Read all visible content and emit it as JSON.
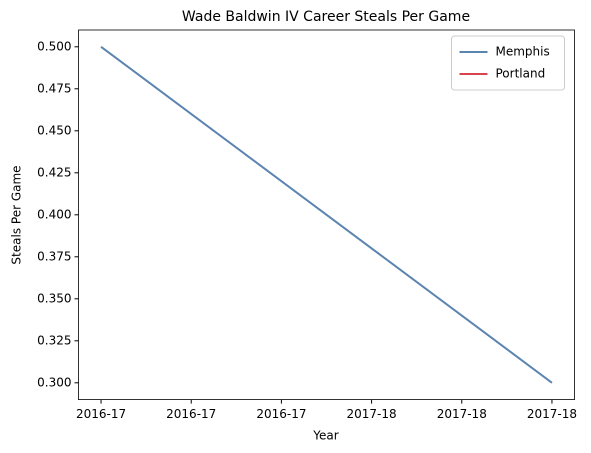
{
  "chart_data": {
    "type": "line",
    "title": "Wade Baldwin IV Career Steals Per Game",
    "xlabel": "Year",
    "ylabel": "Steals Per Game",
    "x": [
      0,
      1
    ],
    "series": [
      {
        "name": "Memphis",
        "color": "#5b84b1",
        "values": [
          0.5,
          0.3
        ]
      },
      {
        "name": "Portland",
        "color": "#d9434b",
        "values": [
          null,
          null
        ]
      }
    ],
    "xlim": [
      -0.05,
      1.05
    ],
    "xticks": [
      {
        "value": 0,
        "label": "2016-17"
      },
      {
        "value": 0.2,
        "label": "2016-17"
      },
      {
        "value": 0.4,
        "label": "2016-17"
      },
      {
        "value": 0.6,
        "label": "2017-18"
      },
      {
        "value": 0.8,
        "label": "2017-18"
      },
      {
        "value": 1,
        "label": "2017-18"
      }
    ],
    "ylim": [
      0.29,
      0.51
    ],
    "yticks": [
      {
        "value": 0.3,
        "label": "0.300"
      },
      {
        "value": 0.325,
        "label": "0.325"
      },
      {
        "value": 0.35,
        "label": "0.350"
      },
      {
        "value": 0.375,
        "label": "0.375"
      },
      {
        "value": 0.4,
        "label": "0.400"
      },
      {
        "value": 0.425,
        "label": "0.425"
      },
      {
        "value": 0.45,
        "label": "0.450"
      },
      {
        "value": 0.475,
        "label": "0.475"
      },
      {
        "value": 0.5,
        "label": "0.500"
      }
    ],
    "grid": false,
    "legend": "upper right"
  }
}
